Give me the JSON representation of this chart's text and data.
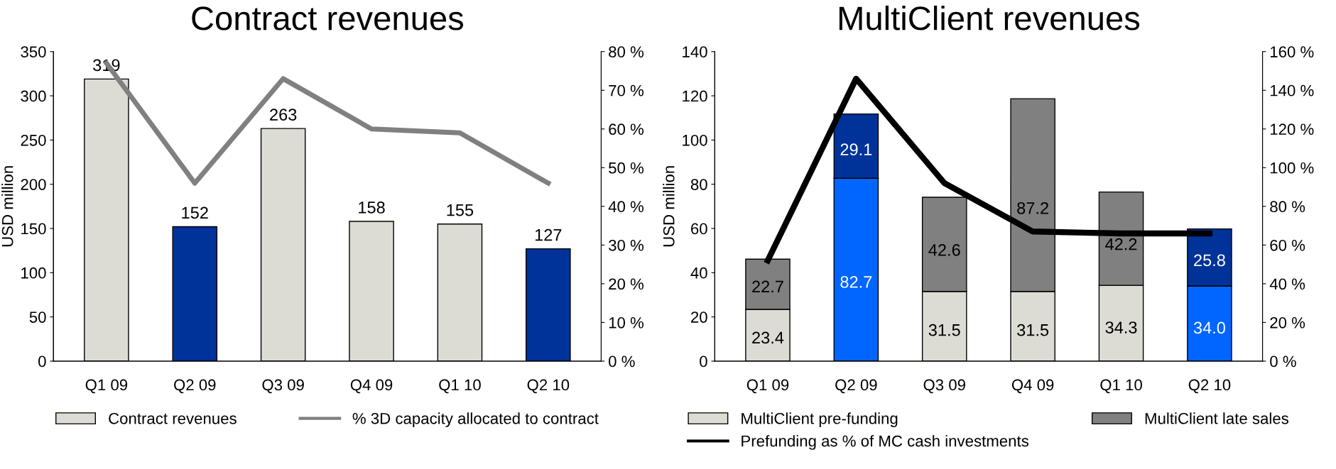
{
  "chart_data": [
    {
      "type": "bar",
      "title": "Contract revenues",
      "ylabel": "USD million",
      "categories": [
        "Q1 09",
        "Q2 09",
        "Q3 09",
        "Q4 09",
        "Q1 10",
        "Q2 10"
      ],
      "series": [
        {
          "name": "Contract revenues",
          "color": "#dcdcd4",
          "colors": [
            "#dcdcd4",
            "#003399",
            "#dcdcd4",
            "#dcdcd4",
            "#dcdcd4",
            "#003399"
          ],
          "values": [
            319,
            152,
            263,
            158,
            155,
            127
          ],
          "value_labels": [
            "319",
            "152",
            "263",
            "158",
            "155",
            "127"
          ]
        },
        {
          "name": "% 3D capacity allocated to contract",
          "type": "line",
          "axis": "y2",
          "color": "#808080",
          "values": [
            77,
            46,
            73,
            60,
            59,
            46
          ]
        }
      ],
      "ylim": [
        0,
        350
      ],
      "yticks": [
        0,
        50,
        100,
        150,
        200,
        250,
        300,
        350
      ],
      "y2lim": [
        0,
        80
      ],
      "y2ticks": [
        {
          "value": 0,
          "label": "0 %"
        },
        {
          "value": 10,
          "label": "10 %"
        },
        {
          "value": 20,
          "label": "20 %"
        },
        {
          "value": 30,
          "label": "30 %"
        },
        {
          "value": 40,
          "label": "40 %"
        },
        {
          "value": 50,
          "label": "50 %"
        },
        {
          "value": 60,
          "label": "60 %"
        },
        {
          "value": 70,
          "label": "70 %"
        },
        {
          "value": 80,
          "label": "80 %"
        }
      ],
      "legend": "bottom",
      "grid": false
    },
    {
      "type": "bar",
      "title": "MultiClient revenues",
      "ylabel": "USD million",
      "categories": [
        "Q1 09",
        "Q2 09",
        "Q3 09",
        "Q4 09",
        "Q1 10",
        "Q2 10"
      ],
      "stacked": true,
      "series": [
        {
          "name": "MultiClient pre-funding",
          "color": "#dcdcd4",
          "colors": [
            "#dcdcd4",
            "#0066ff",
            "#dcdcd4",
            "#dcdcd4",
            "#dcdcd4",
            "#0066ff"
          ],
          "values": [
            23.4,
            82.7,
            31.5,
            31.5,
            34.3,
            34.0
          ],
          "value_labels": [
            "23.4",
            "82.7",
            "31.5",
            "31.5",
            "34.3",
            "34.0"
          ]
        },
        {
          "name": "MultiClient late sales",
          "color": "#808080",
          "colors": [
            "#808080",
            "#003399",
            "#808080",
            "#808080",
            "#808080",
            "#003399"
          ],
          "values": [
            22.7,
            29.1,
            42.6,
            87.2,
            42.2,
            25.8
          ],
          "value_labels": [
            "22.7",
            "29.1",
            "42.6",
            "87.2",
            "42.2",
            "25.8"
          ]
        },
        {
          "name": "Prefunding as % of MC cash investments",
          "type": "line",
          "axis": "y2",
          "color": "#000000",
          "values": [
            52,
            146,
            92,
            67,
            66,
            66
          ]
        }
      ],
      "ylim": [
        0,
        140
      ],
      "yticks": [
        0,
        20,
        40,
        60,
        80,
        100,
        120,
        140
      ],
      "y2lim": [
        0,
        160
      ],
      "y2ticks": [
        {
          "value": 0,
          "label": "0 %"
        },
        {
          "value": 20,
          "label": "20 %"
        },
        {
          "value": 40,
          "label": "40 %"
        },
        {
          "value": 60,
          "label": "60 %"
        },
        {
          "value": 80,
          "label": "80 %"
        },
        {
          "value": 100,
          "label": "100 %"
        },
        {
          "value": 120,
          "label": "120 %"
        },
        {
          "value": 140,
          "label": "140 %"
        },
        {
          "value": 160,
          "label": "160 %"
        }
      ],
      "legend": "bottom",
      "grid": false
    }
  ]
}
